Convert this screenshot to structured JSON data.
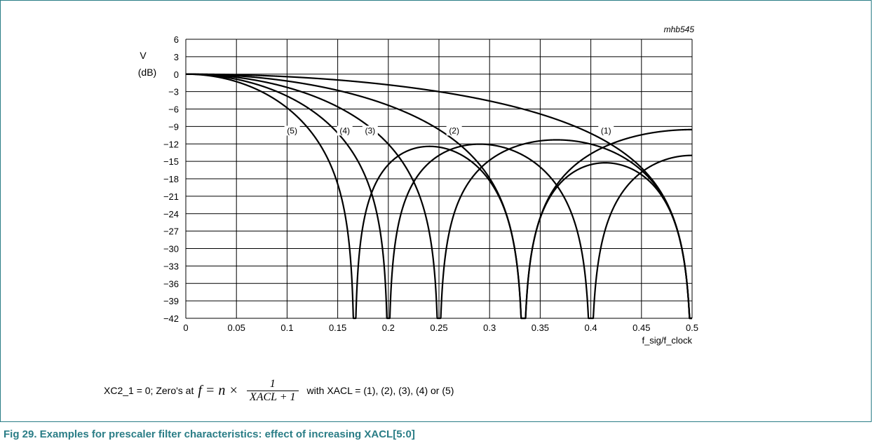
{
  "figure": {
    "code": "mhb545",
    "caption": "Fig 29. Examples for prescaler filter characteristics: effect of increasing XACL[5:0]"
  },
  "formula": {
    "prefix": "XC2_1 = 0; Zero's at",
    "lhs": "f  =  n ×",
    "numerator": "1",
    "denominator": "XACL + 1",
    "suffix": "with XACL = (1), (2), (3), (4) or (5)"
  },
  "chart_data": {
    "type": "line",
    "ylabel_line1": "V",
    "ylabel_line2": "(dB)",
    "xlabel": "f_sig/f_clock",
    "xlim": [
      0,
      0.5
    ],
    "ylim": [
      -42,
      6
    ],
    "x_ticks": [
      "0",
      "0.05",
      "0.1",
      "0.15",
      "0.2",
      "0.25",
      "0.3",
      "0.35",
      "0.4",
      "0.45",
      "0.5"
    ],
    "y_ticks": [
      "6",
      "3",
      "0",
      "−3",
      "−6",
      "−9",
      "−12",
      "−15",
      "−18",
      "−21",
      "−24",
      "−27",
      "−30",
      "−33",
      "−36",
      "−39",
      "−42"
    ],
    "grid": true,
    "series": [
      {
        "label": "(1)",
        "xacl": 1,
        "label_x": 0.415
      },
      {
        "label": "(2)",
        "xacl": 2,
        "label_x": 0.265
      },
      {
        "label": "(3)",
        "xacl": 3,
        "label_x": 0.182
      },
      {
        "label": "(4)",
        "xacl": 4,
        "label_x": 0.157
      },
      {
        "label": "(5)",
        "xacl": 5,
        "label_x": 0.105
      }
    ],
    "series_label_y": -9,
    "curve_model": "20*log10(|sin(pi*(XACL+1)*x)/((XACL+1)*sin(pi*x))|)"
  }
}
